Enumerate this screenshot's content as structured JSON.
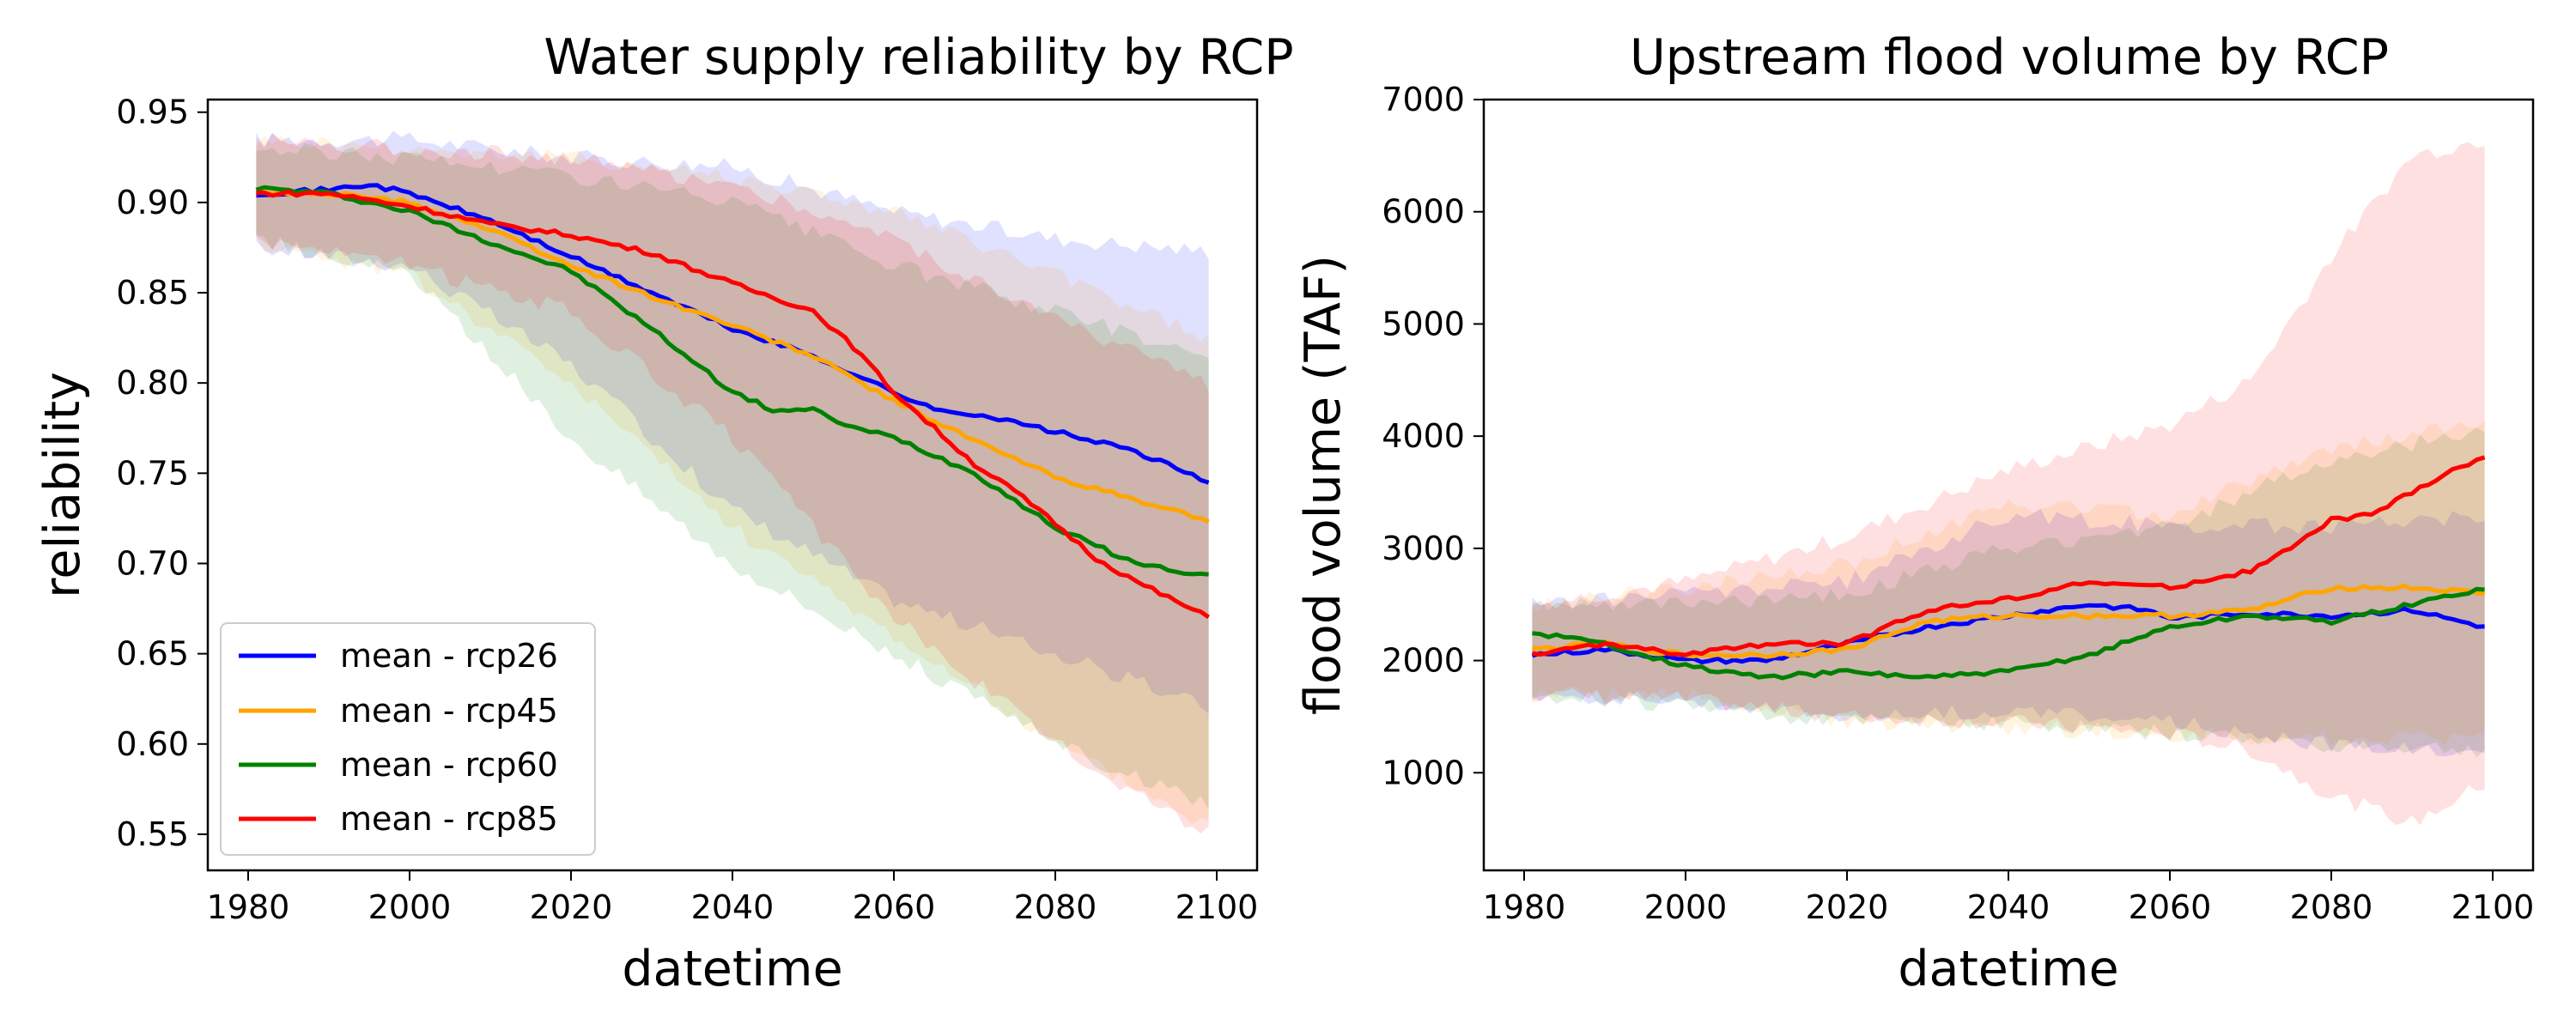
{
  "figure": {
    "background": "#ffffff"
  },
  "chart_data": [
    {
      "type": "line",
      "title": "Water supply reliability by RCP",
      "xlabel": "datetime",
      "ylabel": "reliability",
      "xlim": [
        1975,
        2105
      ],
      "ylim": [
        0.53,
        0.957
      ],
      "xticks": [
        1980,
        2000,
        2020,
        2040,
        2060,
        2080,
        2100
      ],
      "xtick_labels": [
        "1980",
        "2000",
        "2020",
        "2040",
        "2060",
        "2080",
        "2100"
      ],
      "yticks": [
        0.55,
        0.6,
        0.65,
        0.7,
        0.75,
        0.8,
        0.85,
        0.9,
        0.95
      ],
      "ytick_labels": [
        "0.55",
        "0.60",
        "0.65",
        "0.70",
        "0.75",
        "0.80",
        "0.85",
        "0.90",
        "0.95"
      ],
      "legend": {
        "location": "lower left",
        "entries": [
          "mean - rcp26",
          "mean - rcp45",
          "mean - rcp60",
          "mean - rcp85"
        ]
      },
      "series": [
        {
          "name": "mean - rcp26",
          "color": "#0000ff",
          "mean": {
            "x": [
              1981,
              1990,
              1995,
              2000,
              2010,
              2020,
              2030,
              2040,
              2050,
              2060,
              2065,
              2070,
              2080,
              2090,
              2099
            ],
            "y": [
              0.905,
              0.907,
              0.91,
              0.905,
              0.89,
              0.87,
              0.85,
              0.83,
              0.815,
              0.795,
              0.785,
              0.783,
              0.773,
              0.762,
              0.745
            ]
          },
          "band": {
            "x": [
              1981,
              2000,
              2020,
              2040,
              2060,
              2080,
              2099
            ],
            "upper": [
              0.935,
              0.935,
              0.925,
              0.92,
              0.895,
              0.88,
              0.873
            ],
            "lower": [
              0.875,
              0.865,
              0.81,
              0.73,
              0.68,
              0.65,
              0.62
            ]
          }
        },
        {
          "name": "mean - rcp45",
          "color": "#ffa500",
          "mean": {
            "x": [
              1981,
              1990,
              2000,
              2010,
              2020,
              2030,
              2040,
              2050,
              2060,
              2070,
              2080,
              2090,
              2099
            ],
            "y": [
              0.905,
              0.905,
              0.9,
              0.885,
              0.865,
              0.848,
              0.832,
              0.815,
              0.79,
              0.768,
              0.748,
              0.735,
              0.724
            ]
          },
          "band": {
            "x": [
              1981,
              2000,
              2020,
              2040,
              2060,
              2080,
              2099
            ],
            "upper": [
              0.935,
              0.93,
              0.925,
              0.915,
              0.895,
              0.86,
              0.825
            ],
            "lower": [
              0.878,
              0.86,
              0.8,
              0.72,
              0.66,
              0.6,
              0.555
            ]
          }
        },
        {
          "name": "mean - rcp60",
          "color": "#008000",
          "mean": {
            "x": [
              1981,
              1990,
              2000,
              2010,
              2020,
              2030,
              2040,
              2045,
              2050,
              2055,
              2060,
              2070,
              2080,
              2090,
              2099
            ],
            "y": [
              0.908,
              0.905,
              0.895,
              0.878,
              0.862,
              0.83,
              0.795,
              0.785,
              0.785,
              0.775,
              0.77,
              0.75,
              0.72,
              0.7,
              0.693
            ]
          },
          "band": {
            "x": [
              1981,
              2000,
              2020,
              2040,
              2060,
              2080,
              2099
            ],
            "upper": [
              0.93,
              0.925,
              0.915,
              0.9,
              0.865,
              0.84,
              0.815
            ],
            "lower": [
              0.88,
              0.86,
              0.77,
              0.7,
              0.65,
              0.6,
              0.565
            ]
          }
        },
        {
          "name": "mean - rcp85",
          "color": "#ff0000",
          "mean": {
            "x": [
              1981,
              1990,
              2000,
              2010,
              2020,
              2030,
              2040,
              2050,
              2055,
              2060,
              2065,
              2070,
              2075,
              2080,
              2085,
              2090,
              2099
            ],
            "y": [
              0.905,
              0.905,
              0.898,
              0.888,
              0.882,
              0.872,
              0.855,
              0.84,
              0.82,
              0.795,
              0.775,
              0.755,
              0.74,
              0.722,
              0.703,
              0.69,
              0.67
            ]
          },
          "band": {
            "x": [
              1981,
              2000,
              2020,
              2040,
              2060,
              2080,
              2099
            ],
            "upper": [
              0.935,
              0.93,
              0.925,
              0.91,
              0.88,
              0.835,
              0.8
            ],
            "lower": [
              0.88,
              0.865,
              0.84,
              0.77,
              0.67,
              0.6,
              0.55
            ]
          }
        }
      ]
    },
    {
      "type": "line",
      "title": "Upstream flood volume by RCP",
      "xlabel": "datetime",
      "ylabel": "flood volume (TAF)",
      "xlim": [
        1975,
        2105
      ],
      "ylim": [
        130,
        7000
      ],
      "xticks": [
        1980,
        2000,
        2020,
        2040,
        2060,
        2080,
        2100
      ],
      "xtick_labels": [
        "1980",
        "2000",
        "2020",
        "2040",
        "2060",
        "2080",
        "2100"
      ],
      "yticks": [
        1000,
        2000,
        3000,
        4000,
        5000,
        6000,
        7000
      ],
      "ytick_labels": [
        "1000",
        "2000",
        "3000",
        "4000",
        "5000",
        "6000",
        "7000"
      ],
      "series": [
        {
          "name": "mean - rcp26",
          "color": "#0000ff",
          "mean": {
            "x": [
              1981,
              1990,
              2000,
              2010,
              2020,
              2030,
              2040,
              2050,
              2057,
              2060,
              2070,
              2080,
              2090,
              2099
            ],
            "y": [
              2050,
              2100,
              2000,
              2000,
              2150,
              2300,
              2400,
              2500,
              2450,
              2380,
              2420,
              2400,
              2450,
              2300
            ]
          },
          "band": {
            "x": [
              1981,
              2000,
              2020,
              2040,
              2060,
              2080,
              2099
            ],
            "upper": [
              2500,
              2600,
              2700,
              3300,
              3200,
              3200,
              3300
            ],
            "lower": [
              1700,
              1650,
              1500,
              1550,
              1450,
              1250,
              1200
            ]
          }
        },
        {
          "name": "mean - rcp45",
          "color": "#ffa500",
          "mean": {
            "x": [
              1981,
              1990,
              2000,
              2010,
              2020,
              2030,
              2040,
              2050,
              2060,
              2070,
              2080,
              2090,
              2099
            ],
            "y": [
              2100,
              2150,
              2050,
              2050,
              2100,
              2350,
              2400,
              2400,
              2400,
              2450,
              2650,
              2650,
              2600
            ]
          },
          "band": {
            "x": [
              1981,
              2000,
              2020,
              2040,
              2060,
              2080,
              2099
            ],
            "upper": [
              2500,
              2650,
              2850,
              3400,
              3300,
              3900,
              4100
            ],
            "lower": [
              1700,
              1700,
              1450,
              1400,
              1350,
              1300,
              1300
            ]
          }
        },
        {
          "name": "mean - rcp60",
          "color": "#008000",
          "mean": {
            "x": [
              1981,
              1990,
              2000,
              2005,
              2010,
              2020,
              2030,
              2040,
              2050,
              2060,
              2070,
              2080,
              2090,
              2099
            ],
            "y": [
              2250,
              2150,
              1950,
              1900,
              1850,
              1900,
              1850,
              1900,
              2050,
              2300,
              2400,
              2350,
              2500,
              2650
            ]
          },
          "band": {
            "x": [
              1981,
              2000,
              2020,
              2040,
              2060,
              2080,
              2099
            ],
            "upper": [
              2500,
              2500,
              2600,
              3000,
              3200,
              3800,
              4050
            ],
            "lower": [
              1700,
              1600,
              1450,
              1450,
              1350,
              1250,
              1200
            ]
          }
        },
        {
          "name": "mean - rcp85",
          "color": "#ff0000",
          "mean": {
            "x": [
              1981,
              1990,
              2000,
              2010,
              2020,
              2030,
              2040,
              2050,
              2060,
              2070,
              2075,
              2080,
              2085,
              2090,
              2095,
              2099
            ],
            "y": [
              2050,
              2150,
              2050,
              2150,
              2150,
              2450,
              2550,
              2700,
              2650,
              2800,
              3000,
              3250,
              3300,
              3500,
              3700,
              3800
            ]
          },
          "band": {
            "x": [
              1981,
              2000,
              2020,
              2040,
              2060,
              2070,
              2080,
              2090,
              2099
            ],
            "upper": [
              2500,
              2700,
              3100,
              3700,
              4100,
              4500,
              5600,
              6500,
              6650
            ],
            "lower": [
              1700,
              1650,
              1500,
              1450,
              1350,
              1200,
              800,
              550,
              900
            ]
          }
        }
      ]
    }
  ]
}
